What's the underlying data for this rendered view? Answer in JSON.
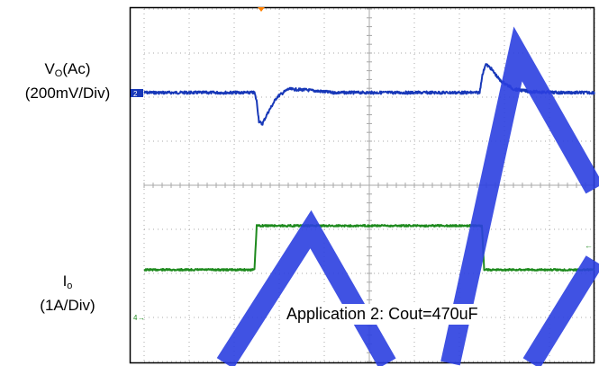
{
  "labels": {
    "vo_main": "V",
    "vo_sub": "O",
    "vo_suffix": "(Ac)",
    "vo_scale": "(200mV/Div)",
    "io_main": "I",
    "io_sub": "o",
    "io_scale": "(1A/Div)"
  },
  "annotation": "Application 2: Cout=470uF",
  "markers": {
    "ch2": "2",
    "ch4": "4"
  },
  "colors": {
    "grid_dots": "#a8a8a8",
    "ch2_trace": "#1838b8",
    "ch4_trace": "#1e8a1e",
    "watermark": "#2b3fe0",
    "trigger": "#ff8000",
    "frame": "#000000"
  },
  "chart_data": [
    {
      "type": "line",
      "title": "",
      "xlabel": "",
      "ylabel": "V_O(Ac) (200mV/Div)",
      "x_divisions": 10,
      "y_divisions": 4,
      "series": [
        {
          "name": "V_O(Ac)",
          "x": [
            0,
            2.45,
            2.5,
            2.55,
            2.62,
            2.75,
            2.95,
            3.2,
            3.6,
            4.2,
            7.45,
            7.5,
            7.58,
            7.7,
            7.9,
            8.2,
            8.6,
            9.2,
            10
          ],
          "y": [
            0,
            0,
            -0.2,
            -0.65,
            -0.72,
            -0.45,
            -0.1,
            0.08,
            0.06,
            0.0,
            0,
            0.35,
            0.65,
            0.55,
            0.28,
            0.08,
            0.02,
            0.0,
            0
          ]
        }
      ]
    },
    {
      "type": "line",
      "title": "",
      "xlabel": "",
      "ylabel": "I_o (1A/Div)",
      "x_divisions": 10,
      "y_divisions": 4,
      "series": [
        {
          "name": "I_o",
          "x": [
            0,
            2.45,
            2.5,
            2.55,
            7.45,
            7.5,
            7.55,
            10
          ],
          "y": [
            0,
            0,
            1.0,
            1.0,
            1.0,
            1.0,
            0,
            0
          ]
        }
      ]
    }
  ]
}
